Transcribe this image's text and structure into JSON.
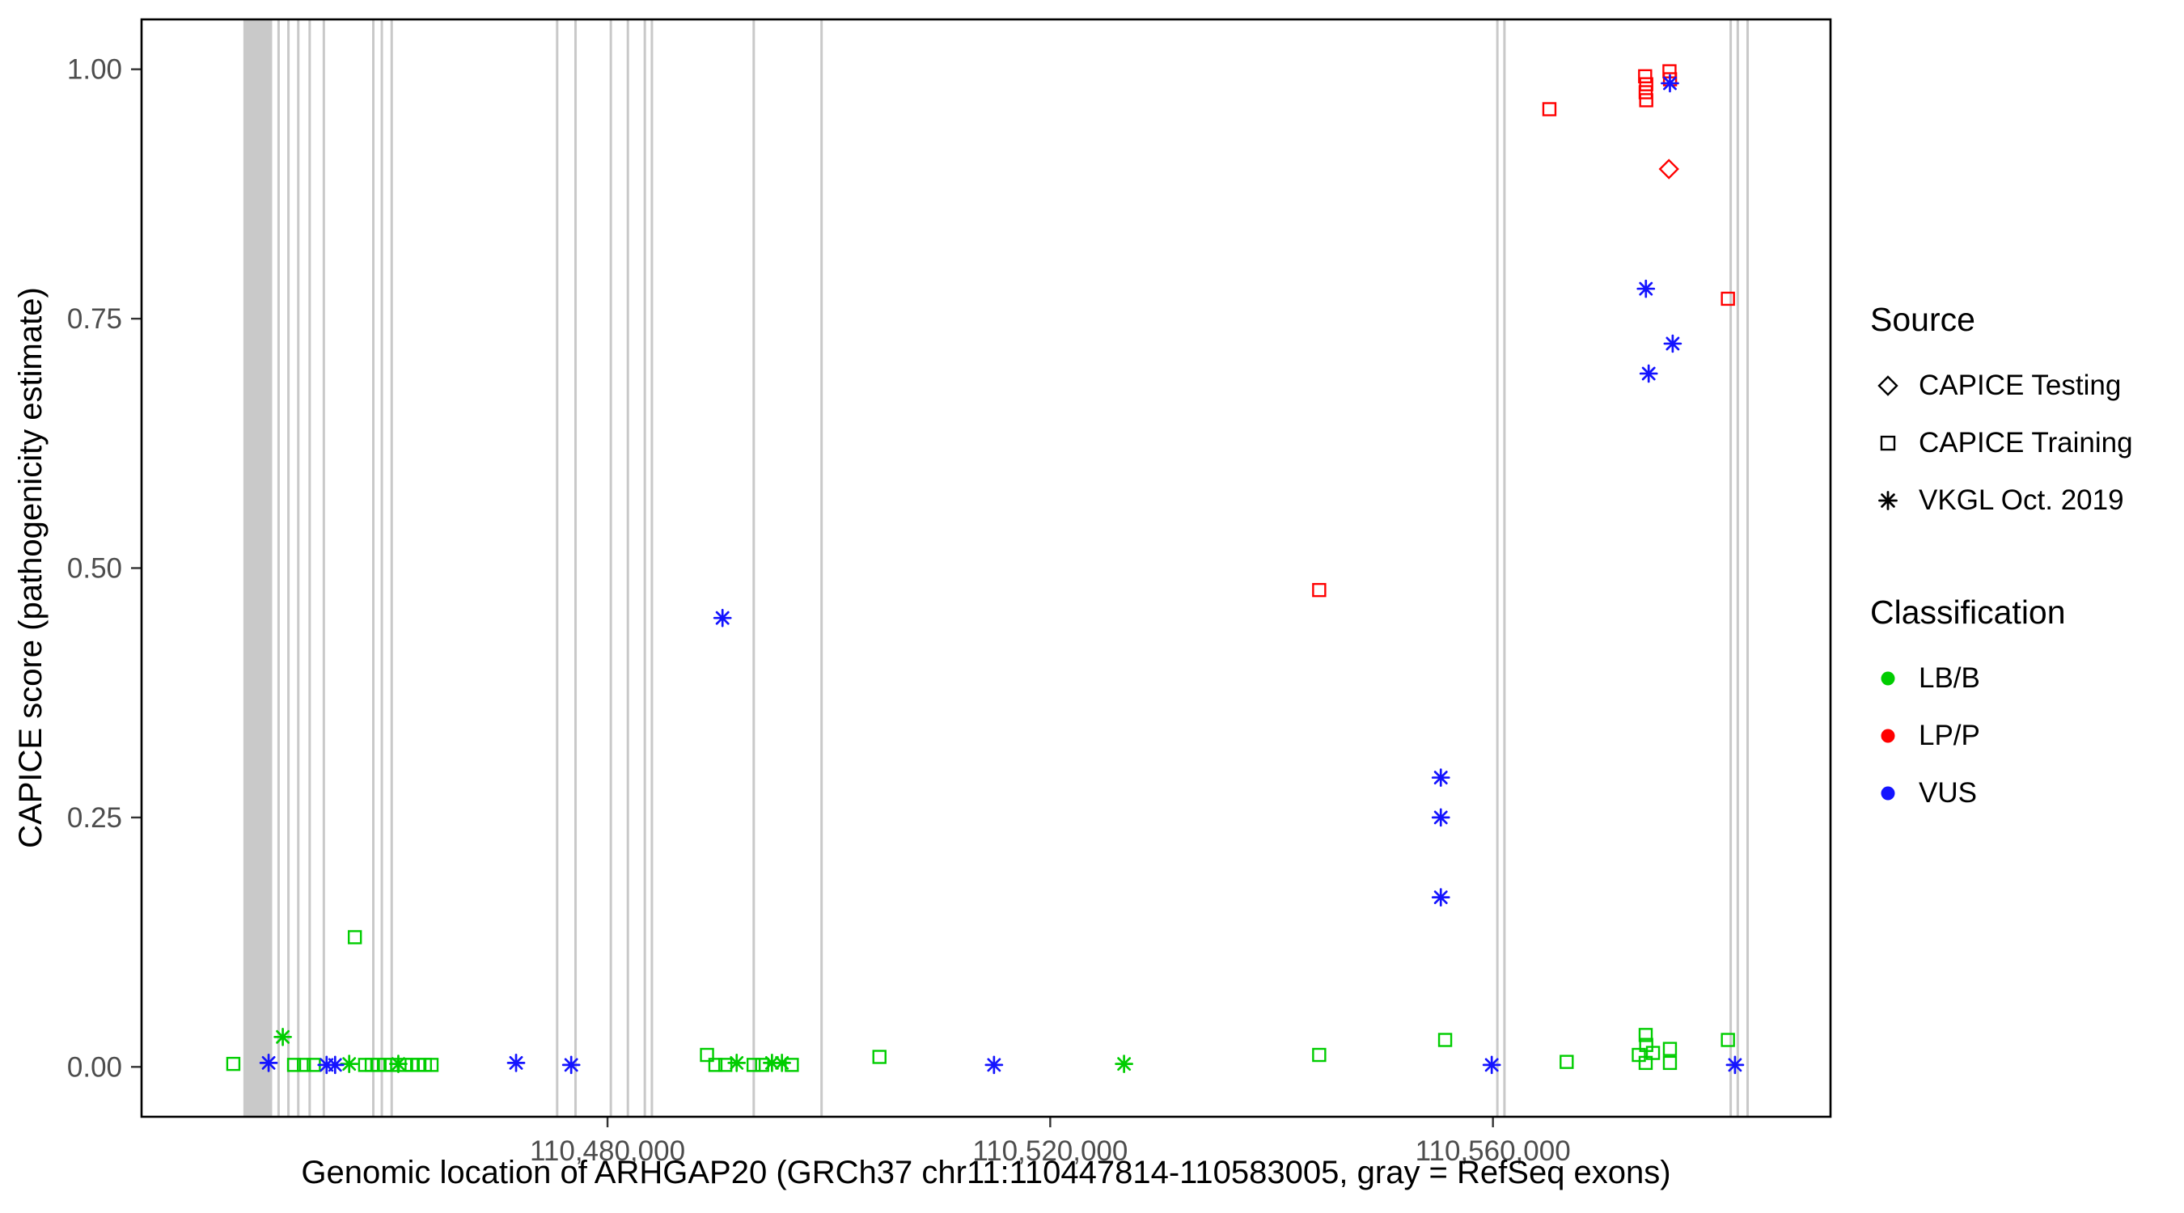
{
  "chart_data": {
    "type": "scatter",
    "title": "",
    "xlabel": "Genomic location of ARHGAP20 (GRCh37 chr11:110447814-110583005, gray = RefSeq exons)",
    "ylabel": "CAPICE score (pathogenicity estimate)",
    "xlim": [
      110437900,
      110590500
    ],
    "ylim": [
      -0.05,
      1.05
    ],
    "grid": false,
    "legend_position": "right",
    "x_ticks": [
      {
        "value": 110480000,
        "label": "110,480,000"
      },
      {
        "value": 110520000,
        "label": "110,520,000"
      },
      {
        "value": 110560000,
        "label": "110,560,000"
      }
    ],
    "y_ticks": [
      {
        "value": 0.0,
        "label": "0.00"
      },
      {
        "value": 0.25,
        "label": "0.25"
      },
      {
        "value": 0.5,
        "label": "0.50"
      },
      {
        "value": 0.75,
        "label": "0.75"
      },
      {
        "value": 1.0,
        "label": "1.00"
      }
    ],
    "exon_color": "#C9C9C9",
    "exon_note": "gray vertical bands = RefSeq exons, genomic start/end estimated from pixels",
    "exons": [
      [
        110447100,
        110449700
      ],
      [
        110450170,
        110450390
      ],
      [
        110451060,
        110451280
      ],
      [
        110451950,
        110452170
      ],
      [
        110452980,
        110453200
      ],
      [
        110454260,
        110454470
      ],
      [
        110458730,
        110458950
      ],
      [
        110459500,
        110459710
      ],
      [
        110460390,
        110460610
      ],
      [
        110475340,
        110475560
      ],
      [
        110477000,
        110477220
      ],
      [
        110480190,
        110480410
      ],
      [
        110481730,
        110481950
      ],
      [
        110483260,
        110483480
      ],
      [
        110483900,
        110484110
      ],
      [
        110493100,
        110493320
      ],
      [
        110499230,
        110499450
      ],
      [
        110560290,
        110560510
      ],
      [
        110560930,
        110561150
      ],
      [
        110581370,
        110581590
      ],
      [
        110582010,
        110582230
      ],
      [
        110582900,
        110583012
      ]
    ],
    "colors": {
      "LB/B": "#00CD00",
      "LP/P": "#FF0000",
      "VUS": "#1414FF"
    },
    "shapes": {
      "CAPICE Testing": "diamond",
      "CAPICE Training": "square",
      "VKGL Oct. 2019": "asterisk"
    },
    "point_format": [
      "genomic_position",
      "capice_score",
      "classification",
      "source"
    ],
    "points": [
      [
        110544300,
        0.478,
        "LP/P",
        "CAPICE Training"
      ],
      [
        110565100,
        0.96,
        "LP/P",
        "CAPICE Training"
      ],
      [
        110573750,
        0.993,
        "LP/P",
        "CAPICE Training"
      ],
      [
        110573850,
        0.985,
        "LP/P",
        "CAPICE Training"
      ],
      [
        110573800,
        0.977,
        "LP/P",
        "CAPICE Training"
      ],
      [
        110573850,
        0.969,
        "LP/P",
        "CAPICE Training"
      ],
      [
        110575950,
        0.998,
        "LP/P",
        "CAPICE Training"
      ],
      [
        110576000,
        0.99,
        "LP/P",
        "CAPICE Training"
      ],
      [
        110581230,
        0.77,
        "LP/P",
        "CAPICE Training"
      ],
      [
        110575900,
        0.9,
        "LP/P",
        "CAPICE Testing"
      ],
      [
        110450660,
        0.03,
        "LB/B",
        "VKGL Oct. 2019"
      ],
      [
        110457170,
        0.13,
        "LB/B",
        "CAPICE Training"
      ],
      [
        110446190,
        0.003,
        "LB/B",
        "CAPICE Training"
      ],
      [
        110451680,
        0.002,
        "LB/B",
        "CAPICE Training"
      ],
      [
        110452570,
        0.002,
        "LB/B",
        "CAPICE Training"
      ],
      [
        110453460,
        0.002,
        "LB/B",
        "CAPICE Training"
      ],
      [
        110456660,
        0.003,
        "LB/B",
        "VKGL Oct. 2019"
      ],
      [
        110458100,
        0.002,
        "LB/B",
        "CAPICE Training"
      ],
      [
        110458700,
        0.002,
        "LB/B",
        "CAPICE Training"
      ],
      [
        110459300,
        0.002,
        "LB/B",
        "CAPICE Training"
      ],
      [
        110459900,
        0.002,
        "LB/B",
        "CAPICE Training"
      ],
      [
        110460500,
        0.002,
        "LB/B",
        "CAPICE Training"
      ],
      [
        110461100,
        0.003,
        "LB/B",
        "VKGL Oct. 2019"
      ],
      [
        110461700,
        0.002,
        "LB/B",
        "CAPICE Training"
      ],
      [
        110462300,
        0.002,
        "LB/B",
        "CAPICE Training"
      ],
      [
        110462900,
        0.002,
        "LB/B",
        "CAPICE Training"
      ],
      [
        110463500,
        0.002,
        "LB/B",
        "CAPICE Training"
      ],
      [
        110464100,
        0.002,
        "LB/B",
        "CAPICE Training"
      ],
      [
        110488990,
        0.012,
        "LB/B",
        "CAPICE Training"
      ],
      [
        110489750,
        0.002,
        "LB/B",
        "CAPICE Training"
      ],
      [
        110490640,
        0.002,
        "LB/B",
        "CAPICE Training"
      ],
      [
        110491670,
        0.004,
        "LB/B",
        "VKGL Oct. 2019"
      ],
      [
        110493200,
        0.002,
        "LB/B",
        "CAPICE Training"
      ],
      [
        110493970,
        0.002,
        "LB/B",
        "CAPICE Training"
      ],
      [
        110494860,
        0.004,
        "LB/B",
        "VKGL Oct. 2019"
      ],
      [
        110495760,
        0.004,
        "LB/B",
        "VKGL Oct. 2019"
      ],
      [
        110496650,
        0.002,
        "LB/B",
        "CAPICE Training"
      ],
      [
        110504570,
        0.01,
        "LB/B",
        "CAPICE Training"
      ],
      [
        110526670,
        0.003,
        "LB/B",
        "VKGL Oct. 2019"
      ],
      [
        110544300,
        0.012,
        "LB/B",
        "CAPICE Training"
      ],
      [
        110555680,
        0.027,
        "LB/B",
        "CAPICE Training"
      ],
      [
        110566660,
        0.005,
        "LB/B",
        "CAPICE Training"
      ],
      [
        110573180,
        0.012,
        "LB/B",
        "CAPICE Training"
      ],
      [
        110573800,
        0.032,
        "LB/B",
        "CAPICE Training"
      ],
      [
        110573850,
        0.022,
        "LB/B",
        "CAPICE Training"
      ],
      [
        110574460,
        0.014,
        "LB/B",
        "CAPICE Training"
      ],
      [
        110573800,
        0.004,
        "LB/B",
        "CAPICE Training"
      ],
      [
        110575990,
        0.018,
        "LB/B",
        "CAPICE Training"
      ],
      [
        110575990,
        0.004,
        "LB/B",
        "CAPICE Training"
      ],
      [
        110581230,
        0.027,
        "LB/B",
        "CAPICE Training"
      ],
      [
        110490390,
        0.45,
        "VUS",
        "VKGL Oct. 2019"
      ],
      [
        110575990,
        0.986,
        "VUS",
        "VKGL Oct. 2019"
      ],
      [
        110573820,
        0.78,
        "VUS",
        "VKGL Oct. 2019"
      ],
      [
        110576240,
        0.725,
        "VUS",
        "VKGL Oct. 2019"
      ],
      [
        110574070,
        0.695,
        "VUS",
        "VKGL Oct. 2019"
      ],
      [
        110555290,
        0.29,
        "VUS",
        "VKGL Oct. 2019"
      ],
      [
        110555290,
        0.25,
        "VUS",
        "VKGL Oct. 2019"
      ],
      [
        110555290,
        0.17,
        "VUS",
        "VKGL Oct. 2019"
      ],
      [
        110449380,
        0.004,
        "VUS",
        "VKGL Oct. 2019"
      ],
      [
        110454620,
        0.002,
        "VUS",
        "VKGL Oct. 2019"
      ],
      [
        110455390,
        0.002,
        "VUS",
        "VKGL Oct. 2019"
      ],
      [
        110471740,
        0.004,
        "VUS",
        "VKGL Oct. 2019"
      ],
      [
        110476720,
        0.002,
        "VUS",
        "VKGL Oct. 2019"
      ],
      [
        110514920,
        0.002,
        "VUS",
        "VKGL Oct. 2019"
      ],
      [
        110559890,
        0.002,
        "VUS",
        "VKGL Oct. 2019"
      ],
      [
        110581870,
        0.002,
        "VUS",
        "VKGL Oct. 2019"
      ]
    ]
  },
  "legend": {
    "source": {
      "title": "Source",
      "items": [
        {
          "label": "CAPICE Testing",
          "shape": "diamond"
        },
        {
          "label": "CAPICE Training",
          "shape": "square"
        },
        {
          "label": "VKGL Oct. 2019",
          "shape": "asterisk"
        }
      ]
    },
    "classification": {
      "title": "Classification",
      "items": [
        {
          "label": "LB/B",
          "color": "#00CD00"
        },
        {
          "label": "LP/P",
          "color": "#FF0000"
        },
        {
          "label": "VUS",
          "color": "#1414FF"
        }
      ]
    }
  }
}
